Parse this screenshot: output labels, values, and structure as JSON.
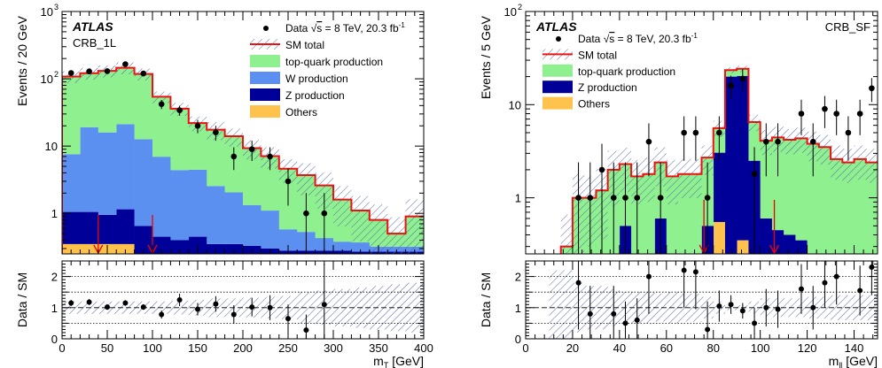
{
  "chart_data": [
    {
      "type": "bar",
      "experiment": "ATLAS",
      "region": "CRB_1L",
      "ylabel": "Events / 20 GeV",
      "ratio_ylabel": "Data / SM",
      "xlabel_main": "m",
      "xlabel_sub": "T",
      "xlabel_unit": " [GeV]",
      "xlim": [
        0,
        400
      ],
      "ylim_log": [
        0.25,
        1000
      ],
      "ratio_ylim": [
        0,
        2.5
      ],
      "log_y": true,
      "bin_width": 20,
      "xticks": [
        0,
        50,
        100,
        150,
        200,
        250,
        300,
        350,
        400
      ],
      "yticks": [
        {
          "v": 1,
          "base": "1",
          "exp": ""
        },
        {
          "v": 10,
          "base": "10",
          "exp": ""
        },
        {
          "v": 100,
          "base": "10",
          "exp": "2"
        },
        {
          "v": 1000,
          "base": "10",
          "exp": "3"
        }
      ],
      "ratio_yticks": [
        0,
        1,
        2
      ],
      "legend": {
        "data_pre": "Data ",
        "data_sqrt": "s",
        "data_post": " = 8 TeV, 20.3 fb",
        "data_sup": "-1",
        "sm_total": "SM total",
        "top": "top-quark production",
        "w": "W production",
        "z": "Z production",
        "others": "Others"
      },
      "colors": {
        "top": "#8ef08e",
        "w": "#5b8ff0",
        "z": "#000099",
        "others": "#ffc34d",
        "sm": "#ee1111"
      },
      "stack_order": [
        "others",
        "z",
        "w",
        "top"
      ],
      "stack": {
        "others": [
          0.35,
          0.35,
          0.35,
          0.35,
          0.25,
          0.25,
          0.25,
          0.25,
          0.25,
          0.25,
          0.25,
          0.25,
          0.25,
          0.25,
          0.25,
          0.25,
          0.25,
          0.25,
          0.25,
          0.25
        ],
        "z": [
          0.7,
          0.7,
          0.6,
          0.8,
          0.4,
          0.2,
          0.15,
          0.2,
          0.1,
          0.1,
          0.08,
          0.05,
          0.03,
          0.03,
          0.03,
          0.03,
          0.02,
          0.02,
          0.02,
          0.02
        ],
        "w": [
          6.5,
          18,
          15,
          20,
          12,
          6.5,
          4,
          4,
          2.2,
          1.7,
          1,
          0.8,
          0.3,
          0.25,
          0.15,
          0.1,
          0.1,
          0.05,
          0.05,
          0.05
        ],
        "top": [
          100,
          102,
          115,
          125,
          105,
          47,
          32,
          18,
          15,
          12,
          8,
          6,
          4,
          3.2,
          2.2,
          1.2,
          0.7,
          0.5,
          0.2,
          0.6
        ]
      },
      "sm_total": [
        108,
        121,
        131,
        146,
        118,
        54,
        36,
        22,
        17.5,
        14,
        9.3,
        7.1,
        4.6,
        3.7,
        2.6,
        1.6,
        1.1,
        0.8,
        0.5,
        0.9
      ],
      "data": {
        "x": [
          10,
          30,
          50,
          70,
          90,
          110,
          130,
          150,
          170,
          190,
          210,
          230,
          250,
          270,
          290
        ],
        "y": [
          122,
          129,
          130,
          165,
          120,
          42,
          34,
          20,
          16,
          7,
          9,
          7,
          3,
          1,
          1
        ],
        "err": [
          11,
          11.4,
          11.4,
          12.8,
          11,
          6.5,
          5.8,
          4.5,
          4,
          2.6,
          3,
          2.6,
          1.7,
          1,
          1
        ]
      },
      "ratio": {
        "x": [
          10,
          30,
          50,
          70,
          90,
          110,
          130,
          150,
          170,
          190,
          210,
          230,
          250,
          270,
          290
        ],
        "y": [
          1.15,
          1.18,
          1.02,
          1.15,
          1.02,
          0.78,
          1.25,
          0.95,
          1.12,
          0.78,
          1.02,
          1.0,
          0.65,
          0.28,
          1.1
        ],
        "err": [
          0.1,
          0.1,
          0.09,
          0.09,
          0.09,
          0.13,
          0.2,
          0.2,
          0.25,
          0.3,
          0.3,
          0.4,
          0.45,
          0.5,
          1.3
        ]
      },
      "ratio_band": [
        0.2,
        0.2,
        0.2,
        0.2,
        0.2,
        0.2,
        0.22,
        0.25,
        0.3,
        0.3,
        0.32,
        0.35,
        0.38,
        0.5,
        0.55,
        0.6,
        0.65,
        0.7,
        0.75,
        0.8
      ],
      "arrows": [
        40,
        100
      ],
      "dashed_lines": [
        0.5,
        1,
        1.5,
        2
      ]
    },
    {
      "type": "bar",
      "experiment": "ATLAS",
      "region": "CRB_SF",
      "ylabel": "Events / 5 GeV",
      "ratio_ylabel": "Data / SM",
      "xlabel_main": "m",
      "xlabel_sub": "ll",
      "xlabel_unit": " [GeV]",
      "xlim": [
        0,
        150
      ],
      "ylim_log": [
        0.25,
        100
      ],
      "ratio_ylim": [
        0,
        2.5
      ],
      "log_y": true,
      "bin_width": 5,
      "xticks": [
        0,
        20,
        40,
        60,
        80,
        100,
        120,
        140
      ],
      "yticks": [
        {
          "v": 1,
          "base": "1",
          "exp": ""
        },
        {
          "v": 10,
          "base": "10",
          "exp": ""
        },
        {
          "v": 100,
          "base": "10",
          "exp": "2"
        }
      ],
      "ratio_yticks": [
        0,
        1,
        2
      ],
      "legend": {
        "data_pre": "Data ",
        "data_sqrt": "s",
        "data_post": " = 8 TeV, 20.3 fb",
        "data_sup": "-1",
        "sm_total": "SM total",
        "top": "top-quark production",
        "z": "Z production",
        "others": "Others"
      },
      "colors": {
        "top": "#8ef08e",
        "z": "#000099",
        "others": "#ffc34d",
        "sm": "#ee1111"
      },
      "stack_order": [
        "others",
        "z",
        "top"
      ],
      "stack": {
        "others": [
          0,
          0,
          0,
          0,
          0,
          0,
          0,
          0,
          0,
          0,
          0,
          0,
          0,
          0,
          0,
          0,
          0.55,
          0,
          0.35,
          0,
          0,
          0,
          0,
          0,
          0,
          0,
          0,
          0,
          0,
          0
        ],
        "z": [
          0,
          0,
          0,
          0,
          0,
          0,
          0,
          0,
          0.5,
          0,
          0,
          0.6,
          0,
          0,
          0,
          0.5,
          2.5,
          20,
          20,
          2.5,
          0.6,
          0.45,
          0.4,
          0.35,
          0,
          0,
          0,
          0,
          0,
          0
        ],
        "top": [
          0,
          0,
          0,
          0.3,
          1,
          1,
          1.2,
          2,
          1.8,
          1.7,
          1.8,
          1.8,
          1.7,
          1.8,
          1.8,
          2.2,
          2.6,
          3.5,
          4,
          4,
          3.5,
          4,
          3.8,
          4,
          3.8,
          3.5,
          2.6,
          2.4,
          2.6,
          2.4
        ]
      },
      "sm_total": [
        0,
        0,
        0,
        0.3,
        1,
        1,
        1.2,
        2,
        2.3,
        1.7,
        1.8,
        2.4,
        1.7,
        1.8,
        1.8,
        2.7,
        5.6,
        23.5,
        24.3,
        6.5,
        4.1,
        4.45,
        4.2,
        4.35,
        3.8,
        3.5,
        2.6,
        2.4,
        2.6,
        2.4
      ],
      "data": {
        "x": [
          22.5,
          27.5,
          32.5,
          37.5,
          42.5,
          47.5,
          52.5,
          57.5,
          67.5,
          72.5,
          77.5,
          82.5,
          87.5,
          92.5,
          97.5,
          102.5,
          107.5,
          117.5,
          122.5,
          127.5,
          132.5,
          137.5,
          142.5,
          147.5
        ],
        "y": [
          1,
          1,
          2,
          1,
          1,
          1,
          4,
          1,
          5,
          5,
          1,
          5,
          16,
          19,
          1.8,
          4,
          4,
          8,
          4,
          9,
          8,
          5,
          8,
          15
        ],
        "err": [
          1.4,
          1.4,
          1.8,
          1.4,
          1.4,
          1.4,
          2.3,
          1.4,
          2.5,
          2.5,
          1.4,
          2.5,
          4.5,
          5,
          1.7,
          2.3,
          2.3,
          3.3,
          2.3,
          3.4,
          3.3,
          2.5,
          3.3,
          4.3
        ]
      },
      "ratio": {
        "x": [
          22.5,
          27.5,
          37.5,
          42.5,
          47.5,
          52.5,
          67.5,
          72.5,
          77.5,
          82.5,
          87.5,
          92.5,
          97.5,
          102.5,
          107.5,
          117.5,
          122.5,
          127.5,
          132.5,
          142.5,
          147.5
        ],
        "y": [
          1.8,
          0.8,
          0.8,
          0.5,
          0.6,
          2.0,
          2.2,
          2.15,
          0.3,
          1.05,
          1.1,
          0.9,
          0.5,
          1.0,
          0.95,
          1.6,
          1.0,
          1.8,
          2.0,
          1.55,
          2.3
        ],
        "err": [
          1.5,
          0.9,
          0.9,
          0.7,
          0.7,
          1.2,
          1.2,
          1.2,
          0.9,
          0.5,
          0.3,
          0.25,
          0.5,
          0.6,
          0.6,
          0.8,
          0.7,
          0.8,
          0.9,
          0.8,
          0.9
        ]
      },
      "ratio_band": [
        0,
        0,
        1.2,
        1.2,
        0.8,
        0.7,
        0.7,
        0.6,
        0.5,
        0.5,
        0.5,
        0.45,
        0.5,
        0.45,
        0.45,
        0.35,
        0.2,
        0.08,
        0.08,
        0.2,
        0.3,
        0.3,
        0.3,
        0.3,
        0.35,
        0.35,
        0.4,
        0.4,
        0.4,
        0.4
      ],
      "arrows": [
        76,
        106
      ],
      "dashed_lines": [
        0.5,
        1,
        1.5,
        2
      ]
    }
  ]
}
